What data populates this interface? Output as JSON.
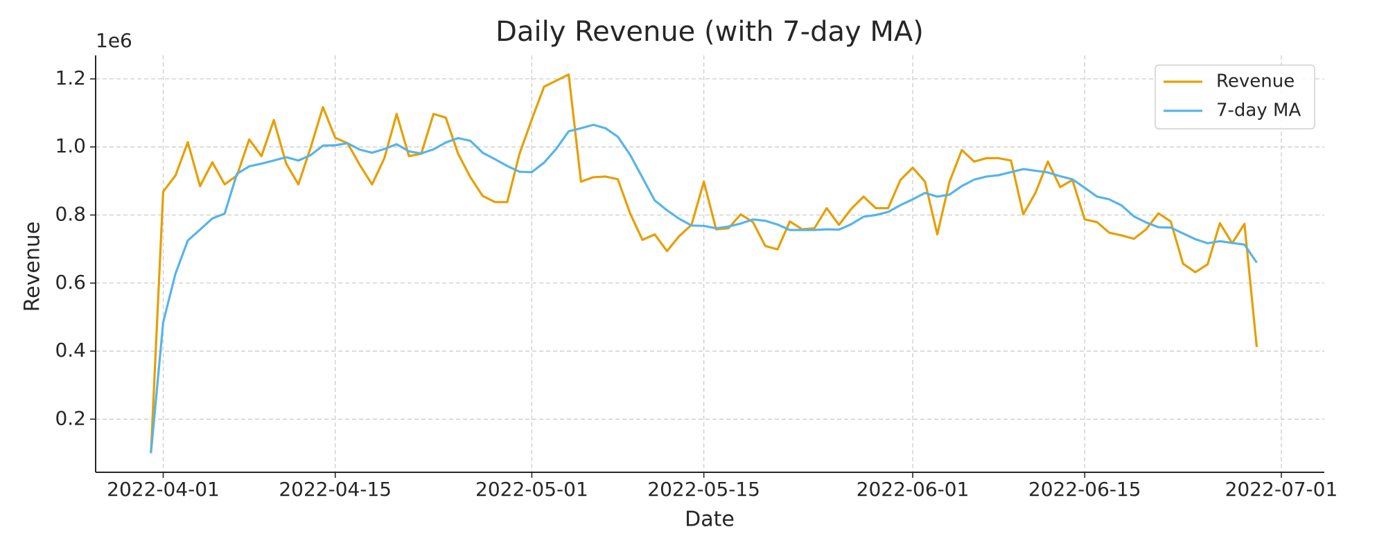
{
  "chart_data": {
    "type": "line",
    "title": "Daily Revenue (with 7-day MA)",
    "x_label": "Date",
    "y_label": "Revenue",
    "y_offset_label": "1e6",
    "x": [
      "2022-03-31",
      "2022-04-01",
      "2022-04-02",
      "2022-04-03",
      "2022-04-04",
      "2022-04-05",
      "2022-04-06",
      "2022-04-07",
      "2022-04-08",
      "2022-04-09",
      "2022-04-10",
      "2022-04-11",
      "2022-04-12",
      "2022-04-13",
      "2022-04-14",
      "2022-04-15",
      "2022-04-16",
      "2022-04-17",
      "2022-04-18",
      "2022-04-19",
      "2022-04-20",
      "2022-04-21",
      "2022-04-22",
      "2022-04-23",
      "2022-04-24",
      "2022-04-25",
      "2022-04-26",
      "2022-04-27",
      "2022-04-28",
      "2022-04-29",
      "2022-04-30",
      "2022-05-01",
      "2022-05-02",
      "2022-05-03",
      "2022-05-04",
      "2022-05-05",
      "2022-05-06",
      "2022-05-07",
      "2022-05-08",
      "2022-05-09",
      "2022-05-10",
      "2022-05-11",
      "2022-05-12",
      "2022-05-13",
      "2022-05-14",
      "2022-05-15",
      "2022-05-16",
      "2022-05-17",
      "2022-05-18",
      "2022-05-19",
      "2022-05-20",
      "2022-05-21",
      "2022-05-22",
      "2022-05-23",
      "2022-05-24",
      "2022-05-25",
      "2022-05-26",
      "2022-05-27",
      "2022-05-28",
      "2022-05-29",
      "2022-05-30",
      "2022-05-31",
      "2022-06-01",
      "2022-06-02",
      "2022-06-03",
      "2022-06-04",
      "2022-06-05",
      "2022-06-06",
      "2022-06-07",
      "2022-06-08",
      "2022-06-09",
      "2022-06-10",
      "2022-06-11",
      "2022-06-12",
      "2022-06-13",
      "2022-06-14",
      "2022-06-15",
      "2022-06-16",
      "2022-06-17",
      "2022-06-18",
      "2022-06-19",
      "2022-06-20",
      "2022-06-21",
      "2022-06-22",
      "2022-06-23",
      "2022-06-24",
      "2022-06-25",
      "2022-06-26",
      "2022-06-27",
      "2022-06-28",
      "2022-06-29"
    ],
    "series": [
      {
        "name": "Revenue",
        "color": "#E69F00",
        "values": [
          0.1,
          0.869,
          0.916,
          1.014,
          0.885,
          0.955,
          0.89,
          0.916,
          1.022,
          0.973,
          1.079,
          0.952,
          0.89,
          0.998,
          1.117,
          1.027,
          1.011,
          0.947,
          0.89,
          0.967,
          1.097,
          0.973,
          0.98,
          1.097,
          1.086,
          0.98,
          0.911,
          0.856,
          0.838,
          0.838,
          0.98,
          1.081,
          1.177,
          1.195,
          1.213,
          0.898,
          0.911,
          0.913,
          0.905,
          0.805,
          0.727,
          0.743,
          0.694,
          0.738,
          0.771,
          0.898,
          0.758,
          0.761,
          0.802,
          0.779,
          0.709,
          0.699,
          0.781,
          0.758,
          0.761,
          0.82,
          0.771,
          0.818,
          0.854,
          0.82,
          0.82,
          0.903,
          0.939,
          0.898,
          0.743,
          0.898,
          0.991,
          0.957,
          0.967,
          0.967,
          0.96,
          0.802,
          0.866,
          0.957,
          0.882,
          0.903,
          0.787,
          0.779,
          0.748,
          0.74,
          0.73,
          0.758,
          0.805,
          0.781,
          0.657,
          0.632,
          0.655,
          0.776,
          0.717,
          0.774,
          0.412
        ]
      },
      {
        "name": "7-day MA",
        "color": "#56B4E9",
        "values": [
          0.1,
          0.485,
          0.628,
          0.725,
          0.757,
          0.79,
          0.804,
          0.921,
          0.943,
          0.951,
          0.96,
          0.97,
          0.96,
          0.976,
          1.004,
          1.005,
          1.011,
          0.992,
          0.983,
          0.994,
          1.008,
          0.987,
          0.981,
          0.993,
          1.013,
          1.026,
          1.018,
          0.983,
          0.964,
          0.944,
          0.927,
          0.926,
          0.954,
          0.995,
          1.046,
          1.055,
          1.065,
          1.055,
          1.03,
          0.977,
          0.91,
          0.843,
          0.814,
          0.789,
          0.769,
          0.768,
          0.761,
          0.766,
          0.775,
          0.787,
          0.783,
          0.772,
          0.756,
          0.756,
          0.756,
          0.758,
          0.757,
          0.773,
          0.795,
          0.8,
          0.809,
          0.829,
          0.846,
          0.865,
          0.854,
          0.86,
          0.885,
          0.904,
          0.913,
          0.917,
          0.926,
          0.935,
          0.93,
          0.925,
          0.914,
          0.905,
          0.88,
          0.854,
          0.846,
          0.828,
          0.796,
          0.778,
          0.764,
          0.763,
          0.746,
          0.729,
          0.717,
          0.723,
          0.718,
          0.713,
          0.66
        ]
      }
    ],
    "xlim": [
      "2022-03-26T12:00",
      "2022-07-04T12:00"
    ],
    "xticks": [
      "2022-04-01",
      "2022-04-15",
      "2022-05-01",
      "2022-05-15",
      "2022-06-01",
      "2022-06-15",
      "2022-07-01"
    ],
    "ylim": [
      0.044,
      1.269
    ],
    "yticks": [
      0.2,
      0.4,
      0.6,
      0.8,
      {
        "value": 1,
        "label": "1.0"
      },
      1.2
    ],
    "grid": true,
    "legend": "upper right"
  }
}
